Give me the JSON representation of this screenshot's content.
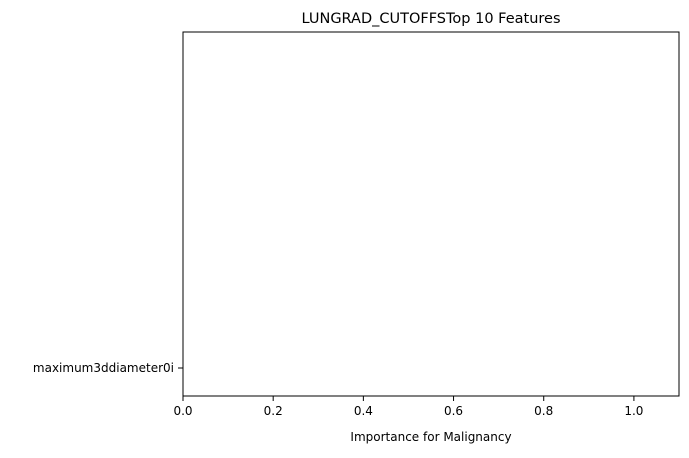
{
  "chart_data": {
    "type": "bar",
    "orientation": "horizontal",
    "title": "LUNGRAD_CUTOFFSTop 10 Features",
    "xlabel": "Importance for Malignancy",
    "ylabel": "",
    "categories": [
      "maximum3ddiameter0i"
    ],
    "values": [
      0
    ],
    "xlim": [
      0,
      1.1
    ],
    "xticks": [
      "0.0",
      "0.2",
      "0.4",
      "0.6",
      "0.8",
      "1.0"
    ],
    "grid": false,
    "bar_color": "#1f77b4"
  }
}
